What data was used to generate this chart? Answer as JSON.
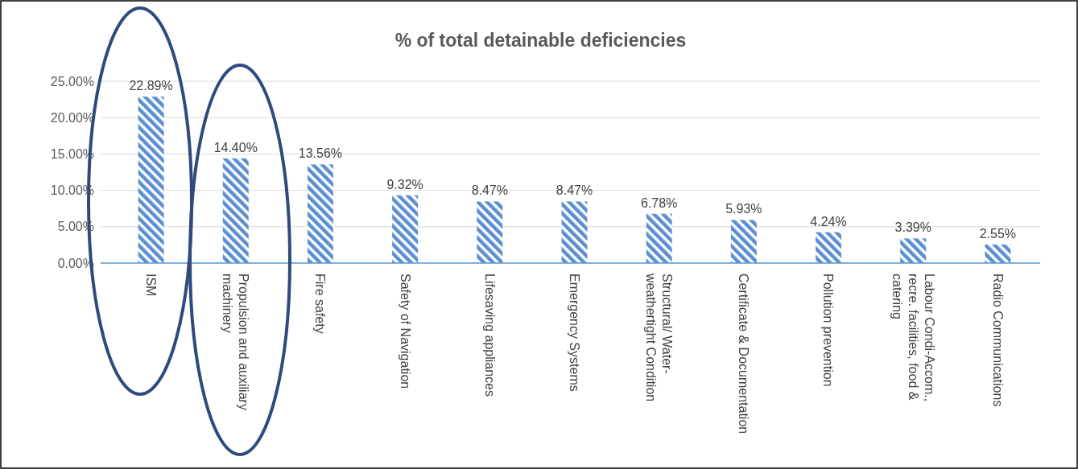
{
  "chart_data": {
    "type": "bar",
    "title": "% of total detainable deficiencies",
    "categories": [
      "ISM",
      "Propulsion and auxiliary machinery",
      "Fire safety",
      "Safety of Navigation",
      "Lifesaving appliances",
      "Emergency Systems",
      "Structural/ Water-weathertight Condition",
      "Certificate & Documentation",
      "Pollution prevention",
      "Labour Condi-Accom., recre. facilities, food & catering",
      "Radio Communications"
    ],
    "values": [
      22.89,
      14.4,
      13.56,
      9.32,
      8.47,
      8.47,
      6.78,
      5.93,
      4.24,
      3.39,
      2.55
    ],
    "value_labels": [
      "22.89%",
      "14.40%",
      "13.56%",
      "9.32%",
      "8.47%",
      "8.47%",
      "6.78%",
      "5.93%",
      "4.24%",
      "3.39%",
      "2.55%"
    ],
    "color": "#5b8fd0",
    "ylim": [
      0,
      25
    ],
    "yticks": [
      {
        "value": 0,
        "label": "0.00%"
      },
      {
        "value": 5,
        "label": "5.00%"
      },
      {
        "value": 10,
        "label": "10.00%"
      },
      {
        "value": 15,
        "label": "15.00%"
      },
      {
        "value": 20,
        "label": "20.00%"
      },
      {
        "value": 25,
        "label": "25.00%"
      }
    ],
    "grid": "y"
  }
}
